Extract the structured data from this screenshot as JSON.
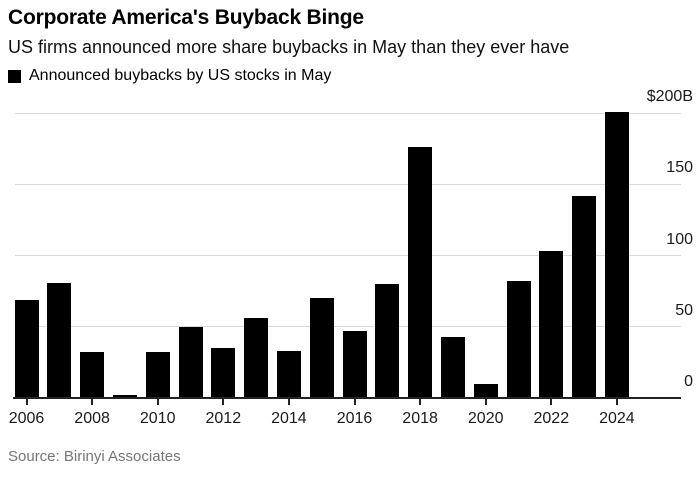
{
  "header": {
    "title": "Corporate America's Buyback Binge",
    "subtitle": "US firms announced more share buybacks in May than they ever have"
  },
  "legend": {
    "label": "Announced buybacks by US stocks in May",
    "marker_color": "#000000"
  },
  "chart_data": {
    "type": "bar",
    "title": "Corporate America's Buyback Binge",
    "subtitle": "US firms announced more share buybacks in May than they ever have",
    "legend_entry": "Announced buybacks by US stocks in May",
    "legend_position": "top-left",
    "unit": "billions of US dollars",
    "categories": [
      2006,
      2007,
      2008,
      2009,
      2010,
      2011,
      2012,
      2013,
      2014,
      2015,
      2016,
      2017,
      2018,
      2019,
      2020,
      2021,
      2022,
      2023,
      2024
    ],
    "values": [
      69,
      81,
      32,
      2,
      32,
      50,
      35,
      56,
      33,
      70,
      47,
      80,
      176,
      43,
      10,
      82,
      103,
      142,
      201
    ],
    "ylim": [
      0,
      200
    ],
    "y_ticks": [
      {
        "value": 200,
        "label": "$200B"
      },
      {
        "value": 150,
        "label": "150"
      },
      {
        "value": 100,
        "label": "100"
      },
      {
        "value": 50,
        "label": "50"
      },
      {
        "value": 0,
        "label": "0"
      }
    ],
    "x_tick_labels": [
      "2006",
      "2008",
      "2010",
      "2012",
      "2014",
      "2016",
      "2018",
      "2020",
      "2022",
      "2024"
    ],
    "bar_color": "#000000",
    "grid": true,
    "axis_side": "right"
  },
  "source": {
    "text": "Source: Birinyi Associates"
  }
}
